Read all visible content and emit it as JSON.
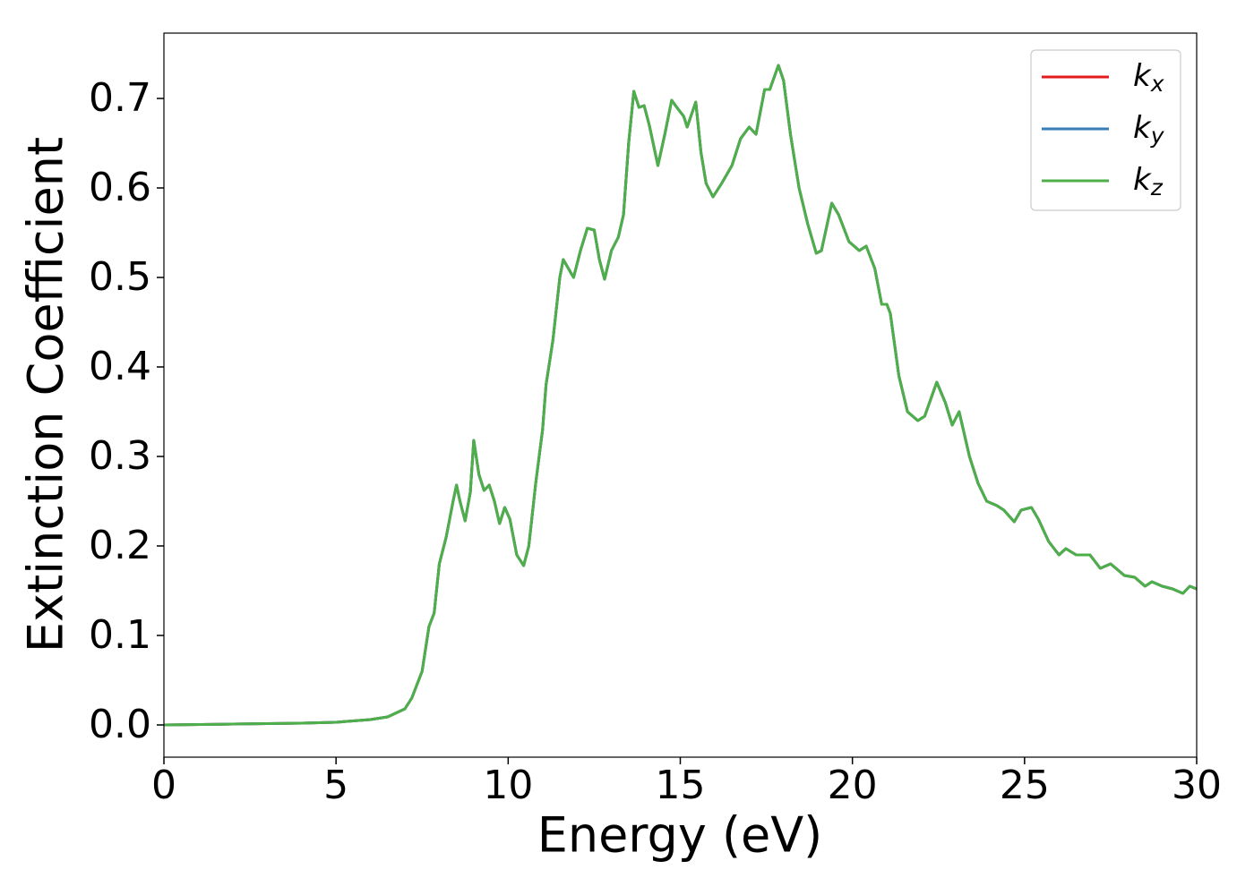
{
  "chart_data": {
    "type": "line",
    "xlabel": "Energy (eV)",
    "ylabel": "Extinction Coefficient",
    "x": [
      0,
      2,
      4,
      5,
      6,
      6.5,
      7,
      7.2,
      7.5,
      7.7,
      7.85,
      8.0,
      8.2,
      8.4,
      8.5,
      8.6,
      8.75,
      8.9,
      9.0,
      9.15,
      9.3,
      9.45,
      9.6,
      9.75,
      9.9,
      10.05,
      10.25,
      10.45,
      10.6,
      10.8,
      11.0,
      11.1,
      11.3,
      11.5,
      11.6,
      11.75,
      11.9,
      12.1,
      12.3,
      12.5,
      12.65,
      12.8,
      13.0,
      13.2,
      13.35,
      13.5,
      13.65,
      13.8,
      13.95,
      14.1,
      14.35,
      14.55,
      14.75,
      14.9,
      15.1,
      15.2,
      15.45,
      15.6,
      15.75,
      15.95,
      16.2,
      16.5,
      16.75,
      17.0,
      17.2,
      17.45,
      17.6,
      17.85,
      18.0,
      18.2,
      18.45,
      18.7,
      18.95,
      19.1,
      19.4,
      19.6,
      19.9,
      20.2,
      20.4,
      20.65,
      20.85,
      21.0,
      21.1,
      21.35,
      21.6,
      21.9,
      22.1,
      22.45,
      22.7,
      22.9,
      23.1,
      23.4,
      23.65,
      23.9,
      24.2,
      24.4,
      24.7,
      24.9,
      25.2,
      25.4,
      25.7,
      26.0,
      26.2,
      26.5,
      26.9,
      27.2,
      27.5,
      27.9,
      28.2,
      28.5,
      28.7,
      29.0,
      29.3,
      29.6,
      29.8,
      30
    ],
    "series": [
      {
        "name": "kx",
        "color": "#e41a1c",
        "values": [
          0.0,
          0.001,
          0.002,
          0.003,
          0.006,
          0.009,
          0.018,
          0.03,
          0.06,
          0.11,
          0.125,
          0.18,
          0.21,
          0.25,
          0.268,
          0.25,
          0.228,
          0.26,
          0.318,
          0.28,
          0.262,
          0.268,
          0.25,
          0.225,
          0.243,
          0.23,
          0.19,
          0.178,
          0.2,
          0.27,
          0.33,
          0.38,
          0.43,
          0.5,
          0.52,
          0.51,
          0.5,
          0.53,
          0.555,
          0.553,
          0.52,
          0.498,
          0.53,
          0.545,
          0.57,
          0.65,
          0.708,
          0.69,
          0.692,
          0.67,
          0.625,
          0.66,
          0.698,
          0.69,
          0.68,
          0.668,
          0.696,
          0.64,
          0.605,
          0.59,
          0.605,
          0.625,
          0.655,
          0.668,
          0.66,
          0.71,
          0.71,
          0.737,
          0.72,
          0.66,
          0.6,
          0.56,
          0.527,
          0.53,
          0.583,
          0.57,
          0.54,
          0.53,
          0.535,
          0.51,
          0.47,
          0.47,
          0.46,
          0.39,
          0.35,
          0.34,
          0.345,
          0.383,
          0.36,
          0.335,
          0.35,
          0.3,
          0.27,
          0.25,
          0.245,
          0.24,
          0.227,
          0.24,
          0.243,
          0.23,
          0.205,
          0.19,
          0.197,
          0.19,
          0.19,
          0.175,
          0.18,
          0.167,
          0.165,
          0.155,
          0.16,
          0.155,
          0.152,
          0.147,
          0.155,
          0.152
        ]
      },
      {
        "name": "ky",
        "color": "#377eb8",
        "values": [
          0.0,
          0.001,
          0.002,
          0.003,
          0.006,
          0.009,
          0.018,
          0.03,
          0.06,
          0.11,
          0.125,
          0.18,
          0.21,
          0.25,
          0.268,
          0.25,
          0.228,
          0.26,
          0.318,
          0.28,
          0.262,
          0.268,
          0.25,
          0.225,
          0.243,
          0.23,
          0.19,
          0.178,
          0.2,
          0.27,
          0.33,
          0.38,
          0.43,
          0.5,
          0.52,
          0.51,
          0.5,
          0.53,
          0.555,
          0.553,
          0.52,
          0.498,
          0.53,
          0.545,
          0.57,
          0.65,
          0.708,
          0.69,
          0.692,
          0.67,
          0.625,
          0.66,
          0.698,
          0.69,
          0.68,
          0.668,
          0.696,
          0.64,
          0.605,
          0.59,
          0.605,
          0.625,
          0.655,
          0.668,
          0.66,
          0.71,
          0.71,
          0.737,
          0.72,
          0.66,
          0.6,
          0.56,
          0.527,
          0.53,
          0.583,
          0.57,
          0.54,
          0.53,
          0.535,
          0.51,
          0.47,
          0.47,
          0.46,
          0.39,
          0.35,
          0.34,
          0.345,
          0.383,
          0.36,
          0.335,
          0.35,
          0.3,
          0.27,
          0.25,
          0.245,
          0.24,
          0.227,
          0.24,
          0.243,
          0.23,
          0.205,
          0.19,
          0.197,
          0.19,
          0.19,
          0.175,
          0.18,
          0.167,
          0.165,
          0.155,
          0.16,
          0.155,
          0.152,
          0.147,
          0.155,
          0.152
        ]
      },
      {
        "name": "kz",
        "color": "#4daf4a",
        "values": [
          0.0,
          0.001,
          0.002,
          0.003,
          0.006,
          0.009,
          0.018,
          0.03,
          0.06,
          0.11,
          0.125,
          0.18,
          0.21,
          0.25,
          0.268,
          0.25,
          0.228,
          0.26,
          0.318,
          0.28,
          0.262,
          0.268,
          0.25,
          0.225,
          0.243,
          0.23,
          0.19,
          0.178,
          0.2,
          0.27,
          0.33,
          0.38,
          0.43,
          0.5,
          0.52,
          0.51,
          0.5,
          0.53,
          0.555,
          0.553,
          0.52,
          0.498,
          0.53,
          0.545,
          0.57,
          0.65,
          0.708,
          0.69,
          0.692,
          0.67,
          0.625,
          0.66,
          0.698,
          0.69,
          0.68,
          0.668,
          0.696,
          0.64,
          0.605,
          0.59,
          0.605,
          0.625,
          0.655,
          0.668,
          0.66,
          0.71,
          0.71,
          0.737,
          0.72,
          0.66,
          0.6,
          0.56,
          0.527,
          0.53,
          0.583,
          0.57,
          0.54,
          0.53,
          0.535,
          0.51,
          0.47,
          0.47,
          0.46,
          0.39,
          0.35,
          0.34,
          0.345,
          0.383,
          0.36,
          0.335,
          0.35,
          0.3,
          0.27,
          0.25,
          0.245,
          0.24,
          0.227,
          0.24,
          0.243,
          0.23,
          0.205,
          0.19,
          0.197,
          0.19,
          0.19,
          0.175,
          0.18,
          0.167,
          0.165,
          0.155,
          0.16,
          0.155,
          0.152,
          0.147,
          0.155,
          0.152
        ]
      }
    ],
    "xlim": [
      0,
      30
    ],
    "xticks": [
      0,
      5,
      10,
      15,
      20,
      25,
      30
    ],
    "ylim": [
      -0.036,
      0.773
    ],
    "yticks": [
      {
        "value": 0,
        "label": "0.0"
      },
      0.1,
      0.2,
      0.3,
      0.4,
      0.5,
      0.6,
      0.7
    ],
    "grid": false,
    "legend": "upper right"
  }
}
